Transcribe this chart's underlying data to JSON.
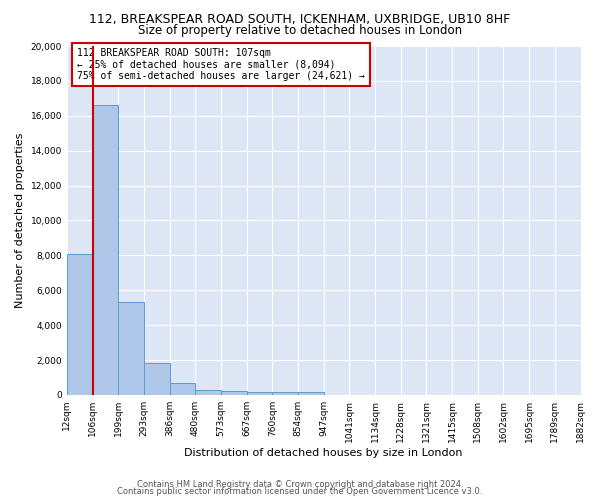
{
  "title": "112, BREAKSPEAR ROAD SOUTH, ICKENHAM, UXBRIDGE, UB10 8HF",
  "subtitle": "Size of property relative to detached houses in London",
  "xlabel": "Distribution of detached houses by size in London",
  "ylabel": "Number of detached properties",
  "footer1": "Contains HM Land Registry data © Crown copyright and database right 2024.",
  "footer2": "Contains public sector information licensed under the Open Government Licence v3.0.",
  "annotation_line1": "112 BREAKSPEAR ROAD SOUTH: 107sqm",
  "annotation_line2": "← 25% of detached houses are smaller (8,094)",
  "annotation_line3": "75% of semi-detached houses are larger (24,621) →",
  "bin_labels": [
    "12sqm",
    "106sqm",
    "199sqm",
    "293sqm",
    "386sqm",
    "480sqm",
    "573sqm",
    "667sqm",
    "760sqm",
    "854sqm",
    "947sqm",
    "1041sqm",
    "1134sqm",
    "1228sqm",
    "1321sqm",
    "1415sqm",
    "1508sqm",
    "1602sqm",
    "1695sqm",
    "1789sqm",
    "1882sqm"
  ],
  "bin_counts": [
    8094,
    16600,
    5300,
    1850,
    700,
    300,
    220,
    190,
    170,
    150,
    0,
    0,
    0,
    0,
    0,
    0,
    0,
    0,
    0,
    0
  ],
  "bar_color": "#aec6e8",
  "bar_edge_color": "#5b9bd5",
  "vline_after_bar": 0,
  "vline_color": "#cc0000",
  "annotation_box_color": "#cc0000",
  "background_color": "#dce6f5",
  "ylim": [
    0,
    20000
  ],
  "yticks": [
    0,
    2000,
    4000,
    6000,
    8000,
    10000,
    12000,
    14000,
    16000,
    18000,
    20000
  ],
  "title_fontsize": 9,
  "subtitle_fontsize": 8.5,
  "ylabel_fontsize": 8,
  "xlabel_fontsize": 8,
  "annot_fontsize": 7,
  "tick_fontsize": 6.5,
  "footer_fontsize": 6
}
